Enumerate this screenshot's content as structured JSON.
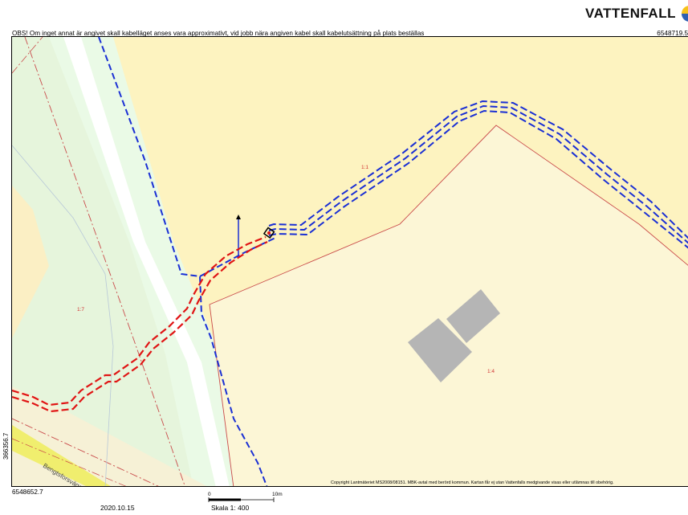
{
  "brand": {
    "name": "VATTENFALL",
    "logo_colors": [
      "#2e5fb3",
      "#f6c21a"
    ]
  },
  "header": {
    "notice": "OBS! Om inget annat är angivet skall kabelläget anses vara approximativt, vid jobb nära angiven kabel skall kabelutsättning på plats beställas",
    "coord_ne": "6548719.5"
  },
  "map": {
    "colors": {
      "field": "#fdf3c0",
      "green": "#e6f5dc",
      "light_green": "#eaf9e6",
      "parcel_fill": "#fcf6d6",
      "building": "#b5b5b5",
      "cable_blue": "#1a2fd4",
      "cable_red": "#e01414",
      "boundary": "#c94a4a",
      "road": "#f0ee6e"
    },
    "parcel_labels": {
      "p1": "1:1",
      "p7": "1:7",
      "p4": "1:4"
    },
    "road_name": "Bengtsforsvägen"
  },
  "footer": {
    "coord_w": "366356.7",
    "coord_sw": "6548652.7",
    "copyright": "Copyright Lantmäteriet  MS2008/08151.  MBK-avtal med berörd kommun.  Kartan får ej utan Vattenfalls medgivande visas eller utlämnas till obehörig.",
    "scalebar_zero": "0",
    "scalebar_end": "10m",
    "date": "2020.10.15",
    "scale": "Skala 1: 400"
  }
}
